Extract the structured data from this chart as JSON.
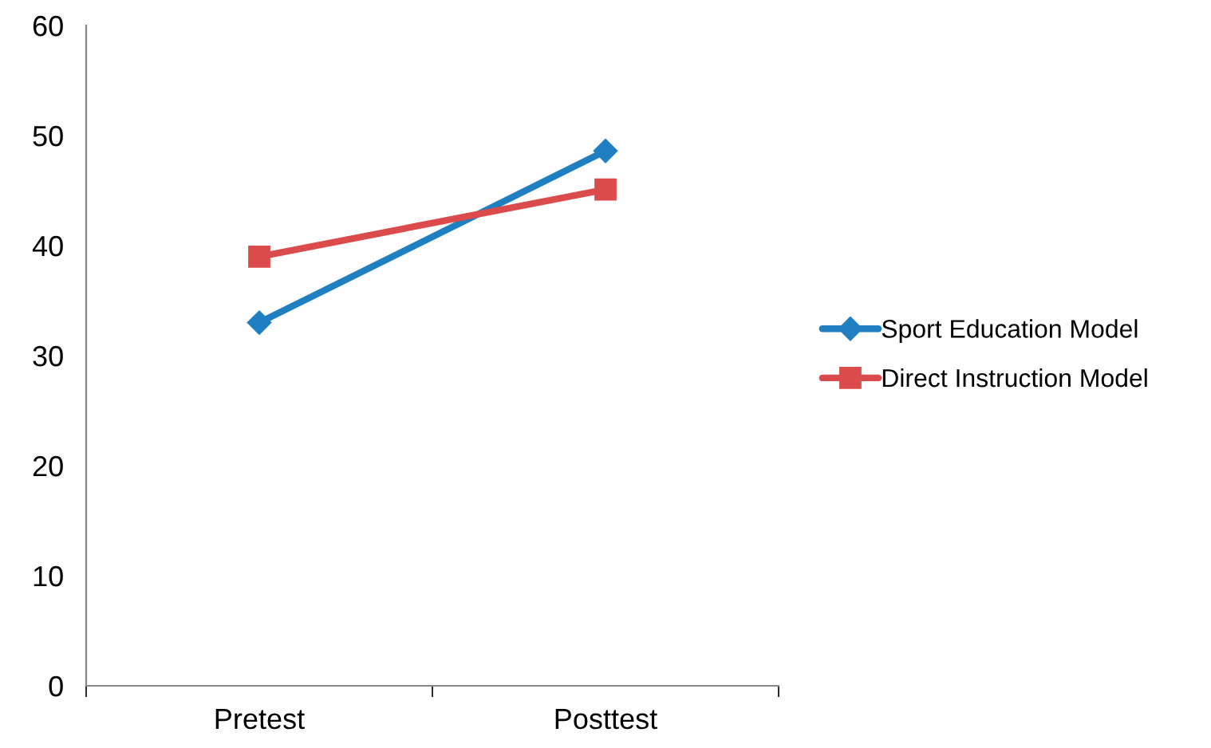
{
  "chart_data": {
    "type": "line",
    "categories": [
      "Pretest",
      "Posttest"
    ],
    "series": [
      {
        "name": "Sport Education Model",
        "color": "#1f7fc1",
        "values": [
          33,
          48.6
        ],
        "marker": "diamond"
      },
      {
        "name": "Direct Instruction Model",
        "color": "#dc4b4b",
        "values": [
          39,
          45.1
        ],
        "marker": "square"
      }
    ],
    "ylim": [
      0,
      60
    ],
    "yticks": [
      0,
      10,
      20,
      30,
      40,
      50,
      60
    ],
    "grid": false,
    "legend": "right"
  }
}
